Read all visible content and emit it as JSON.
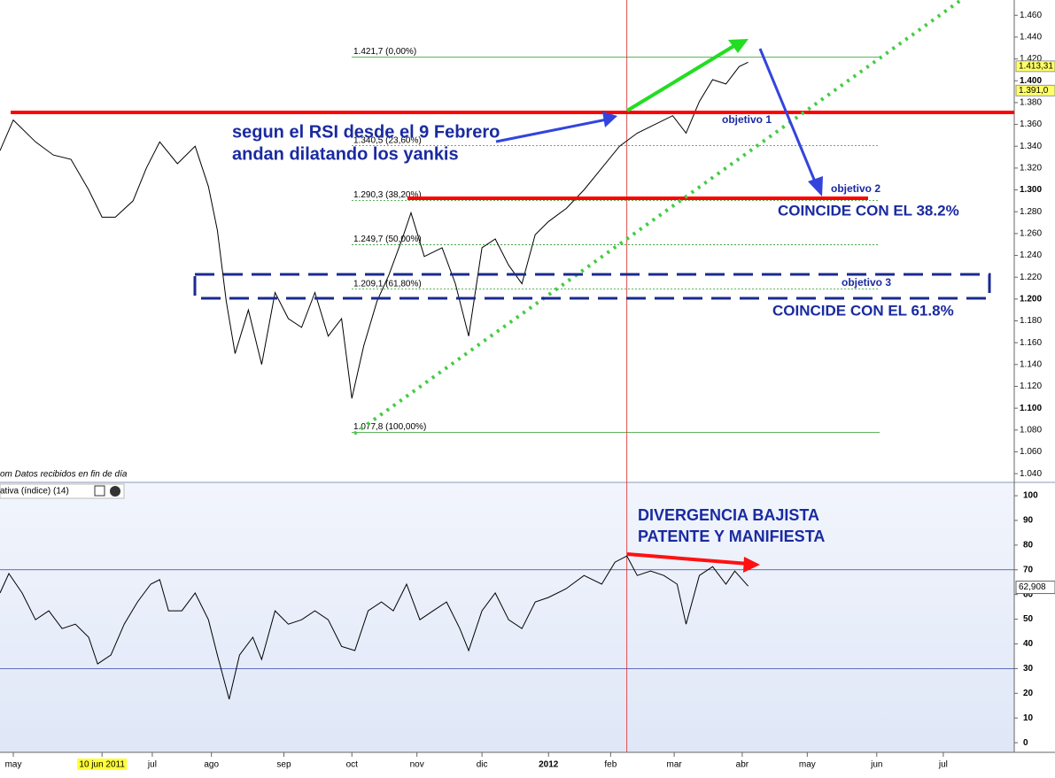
{
  "chart_data": [
    {
      "type": "line",
      "color": "#000000",
      "x": [
        -0.9,
        0,
        1.5,
        2.7,
        3.9,
        5.1,
        6.0,
        6.9,
        8.1,
        9.0,
        9.9,
        11.1,
        12.3,
        13.2,
        13.8,
        14.4,
        15.0,
        15.9,
        16.8,
        17.7,
        18.6,
        19.5,
        20.4,
        21.3,
        22.2,
        22.9,
        23.7,
        24.6,
        25.4,
        26.3,
        26.9,
        27.8,
        29.0,
        29.9,
        30.8,
        31.7,
        32.6,
        33.5,
        34.4,
        35.3,
        36.2,
        37.4,
        38.6,
        39.8,
        41.0,
        42.2,
        43.4,
        44.6,
        45.5,
        46.4,
        47.3,
        48.2,
        49.1,
        49.7
      ],
      "values": [
        1.336,
        1.364,
        1.344,
        1.332,
        1.328,
        1.3,
        1.275,
        1.275,
        1.29,
        1.32,
        1.344,
        1.324,
        1.34,
        1.303,
        1.263,
        1.198,
        1.15,
        1.19,
        1.14,
        1.206,
        1.182,
        1.174,
        1.206,
        1.166,
        1.182,
        1.109,
        1.157,
        1.198,
        1.222,
        1.255,
        1.279,
        1.239,
        1.247,
        1.214,
        1.166,
        1.247,
        1.255,
        1.231,
        1.214,
        1.259,
        1.271,
        1.283,
        1.3,
        1.32,
        1.34,
        1.352,
        1.36,
        1.368,
        1.352,
        1.381,
        1.401,
        1.397,
        1.413,
        1.417
      ],
      "xlim": [
        -0.9,
        67.7
      ],
      "ylim": [
        1.032,
        1.474
      ],
      "yticks": [
        {
          "value": 1.04,
          "label": "1.040"
        },
        {
          "value": 1.06,
          "label": "1.060"
        },
        {
          "value": 1.08,
          "label": "1.080"
        },
        {
          "value": 1.1,
          "label": "1.100"
        },
        {
          "value": 1.12,
          "label": "1.120"
        },
        {
          "value": 1.14,
          "label": "1.140"
        },
        {
          "value": 1.16,
          "label": "1.160"
        },
        {
          "value": 1.18,
          "label": "1.180"
        },
        {
          "value": 1.2,
          "label": "1.200"
        },
        {
          "value": 1.22,
          "label": "1.220"
        },
        {
          "value": 1.24,
          "label": "1.240"
        },
        {
          "value": 1.26,
          "label": "1.260"
        },
        {
          "value": 1.28,
          "label": "1.280"
        },
        {
          "value": 1.3,
          "label": "1.300"
        },
        {
          "value": 1.32,
          "label": "1.320"
        },
        {
          "value": 1.34,
          "label": "1.340"
        },
        {
          "value": 1.36,
          "label": "1.360"
        },
        {
          "value": 1.38,
          "label": "1.380"
        },
        {
          "value": 1.4,
          "label": "1.400"
        },
        {
          "value": 1.42,
          "label": "1.420"
        },
        {
          "value": 1.44,
          "label": "1.440"
        },
        {
          "value": 1.46,
          "label": "1.460"
        }
      ],
      "fib_levels": [
        {
          "value": 1.4217,
          "label": "1.421,7 (0,00%)"
        },
        {
          "value": 1.3405,
          "label": "1.340,5 (23,60%)"
        },
        {
          "value": 1.2903,
          "label": "1.290,3 (38,20%)"
        },
        {
          "value": 1.2497,
          "label": "1.249,7 (50,00%)"
        },
        {
          "value": 1.2091,
          "label": "1.209,1 (61,80%)"
        },
        {
          "value": 1.0778,
          "label": "1.077,8 (100,00%)"
        }
      ],
      "price_tags": [
        {
          "value": 1.41331,
          "label": "1.413,31"
        },
        {
          "value": 1.391,
          "label": "1.391,0"
        }
      ],
      "vline": 41.5,
      "source_note": "om  Datos recibidos en fin de día",
      "annotations": [
        "segun el RSI desde el 9 Febrero",
        "andan dilatando los yankis",
        "objetivo 1",
        "objetivo 2",
        "COINCIDE CON EL 38.2%",
        "objetivo 3",
        "COINCIDE CON  EL 61.8%"
      ]
    },
    {
      "type": "line",
      "color": "#000000",
      "indicator_label": "ativa (índice) (14)",
      "x": [
        -0.9,
        -0.3,
        0.6,
        1.5,
        2.4,
        3.3,
        4.2,
        5.1,
        5.7,
        6.6,
        7.5,
        8.4,
        9.3,
        9.9,
        10.5,
        11.4,
        12.3,
        13.2,
        13.8,
        14.6,
        15.3,
        16.2,
        16.8,
        17.7,
        18.6,
        19.5,
        20.4,
        21.3,
        22.2,
        23.1,
        24.0,
        24.9,
        25.7,
        26.6,
        27.5,
        28.4,
        29.3,
        30.2,
        30.8,
        31.7,
        32.6,
        33.5,
        34.4,
        35.3,
        36.2,
        37.4,
        38.6,
        39.8,
        40.7,
        41.5,
        42.2,
        43.1,
        44.0,
        44.9,
        45.5,
        46.4,
        47.3,
        48.2,
        48.8,
        49.7
      ],
      "values": [
        60.6,
        68.5,
        60.6,
        49.8,
        53.4,
        46.2,
        48,
        42.7,
        31.9,
        35.5,
        48,
        57,
        64.2,
        66,
        53.4,
        53.4,
        60.6,
        49.8,
        35.5,
        17.6,
        35.5,
        42.7,
        33.7,
        53.4,
        48,
        49.8,
        53.4,
        49.8,
        39,
        37.3,
        53.4,
        57,
        53.4,
        64.2,
        49.8,
        53.4,
        57,
        46.2,
        37.3,
        53.4,
        60.6,
        49.8,
        46.2,
        57,
        58.8,
        62.4,
        67.7,
        64.2,
        73.1,
        75.6,
        67.7,
        69.5,
        67.7,
        64.2,
        48,
        67.7,
        71.3,
        64.2,
        69.5,
        63.4
      ],
      "xlim": [
        -0.9,
        67.7
      ],
      "ylim": [
        -3.9,
        105.4
      ],
      "yticks": [
        0,
        10,
        20,
        30,
        40,
        50,
        60,
        70,
        80,
        90,
        100
      ],
      "hlines": [
        70,
        30
      ],
      "last_tag": {
        "value": 62.908,
        "label": "62,908"
      },
      "xticks": [
        {
          "value": 0,
          "label": "may"
        },
        {
          "value": 6.0,
          "label": "10 jun 2011"
        },
        {
          "value": 9.4,
          "label": "jul"
        },
        {
          "value": 13.4,
          "label": "ago"
        },
        {
          "value": 18.3,
          "label": "sep"
        },
        {
          "value": 22.9,
          "label": "oct"
        },
        {
          "value": 27.3,
          "label": "nov"
        },
        {
          "value": 31.7,
          "label": "dic"
        },
        {
          "value": 36.2,
          "label": "2012"
        },
        {
          "value": 40.4,
          "label": "feb"
        },
        {
          "value": 44.7,
          "label": "mar"
        },
        {
          "value": 49.3,
          "label": "abr"
        },
        {
          "value": 53.7,
          "label": "may"
        },
        {
          "value": 58.4,
          "label": "jun"
        },
        {
          "value": 62.9,
          "label": "jul"
        }
      ],
      "annotations": [
        "DIVERGENCIA BAJISTA",
        "PATENTE Y MANIFIESTA"
      ]
    }
  ]
}
